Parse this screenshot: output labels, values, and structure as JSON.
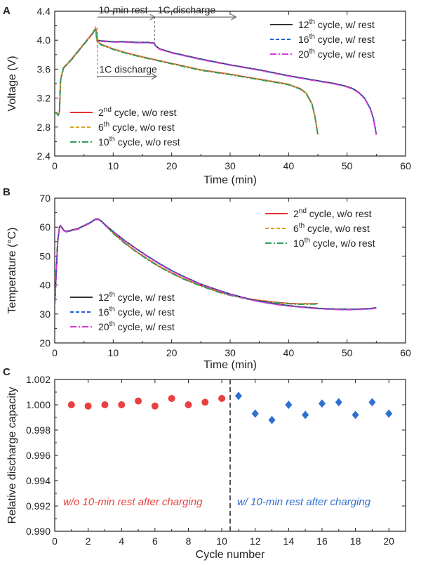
{
  "chart_data": [
    {
      "panel": "A",
      "type": "line",
      "xlabel": "Time (min)",
      "ylabel": "Voltage (V)",
      "xlim": [
        0,
        60
      ],
      "ylim": [
        2.4,
        4.4
      ],
      "xticks": [
        "0",
        "10",
        "20",
        "30",
        "40",
        "50",
        "60"
      ],
      "yticks": [
        "2.4",
        "2.8",
        "3.2",
        "3.6",
        "4.0",
        "4.4"
      ],
      "annotations": [
        "10-min rest",
        "1C discharge",
        "1C discharge"
      ],
      "legend_top_right": [
        {
          "base": "12",
          "sup": "th",
          "rest": " cycle, w/ rest",
          "color": "#333333",
          "dash": ""
        },
        {
          "base": "16",
          "sup": "th",
          "rest": " cycle, w/ rest",
          "color": "#1f5fd6",
          "dash": "5,3"
        },
        {
          "base": "20",
          "sup": "th",
          "rest": " cycle, w/ rest",
          "color": "#d63bd6",
          "dash": "9,3,2,3"
        }
      ],
      "legend_bottom_left": [
        {
          "base": "2",
          "sup": "nd",
          "rest": " cycle, w/o rest",
          "color": "#e8312f",
          "dash": ""
        },
        {
          "base": "6",
          "sup": "th",
          "rest": " cycle, w/o rest",
          "color": "#d8a21c",
          "dash": "5,3"
        },
        {
          "base": "10",
          "sup": "th",
          "rest": " cycle, w/o rest",
          "color": "#2e9c5a",
          "dash": "9,3,2,3"
        }
      ],
      "series": [
        {
          "name": "w/o rest",
          "x": [
            0,
            0.3,
            0.6,
            0.8,
            1.0,
            1.5,
            2.0,
            3.0,
            4.0,
            5.0,
            6.0,
            6.5,
            7.0,
            7.2,
            7.5,
            8,
            10,
            12,
            15,
            20,
            25,
            30,
            35,
            38,
            40,
            41,
            42,
            43,
            44,
            44.5,
            45
          ],
          "y": [
            3.0,
            3.0,
            2.97,
            3.0,
            3.45,
            3.62,
            3.66,
            3.75,
            3.85,
            3.95,
            4.05,
            4.1,
            4.17,
            4.0,
            3.97,
            3.94,
            3.88,
            3.83,
            3.77,
            3.68,
            3.59,
            3.53,
            3.46,
            3.42,
            3.39,
            3.36,
            3.33,
            3.27,
            3.12,
            2.95,
            2.7
          ]
        },
        {
          "name": "w/ rest",
          "x": [
            0,
            0.3,
            0.6,
            0.8,
            1.0,
            1.5,
            2.0,
            3.0,
            4.0,
            5.0,
            6.0,
            6.5,
            7.0,
            7.3,
            8,
            10,
            12,
            14,
            16,
            17,
            17.2,
            17.6,
            18,
            20,
            25,
            30,
            35,
            40,
            45,
            48,
            50,
            51,
            52,
            53,
            54,
            54.5,
            55
          ],
          "y": [
            3.0,
            3.0,
            2.97,
            3.0,
            3.45,
            3.62,
            3.66,
            3.75,
            3.85,
            3.95,
            4.05,
            4.1,
            4.17,
            4.0,
            3.99,
            3.98,
            3.98,
            3.97,
            3.97,
            3.96,
            3.93,
            3.9,
            3.88,
            3.83,
            3.74,
            3.66,
            3.59,
            3.51,
            3.44,
            3.4,
            3.36,
            3.33,
            3.28,
            3.2,
            3.05,
            2.92,
            2.7
          ]
        }
      ]
    },
    {
      "panel": "B",
      "type": "line",
      "xlabel": "Time (min)",
      "ylabel": "Temperature (°C)",
      "xlim": [
        0,
        60
      ],
      "ylim": [
        20,
        70
      ],
      "xticks": [
        "0",
        "10",
        "20",
        "30",
        "40",
        "50",
        "60"
      ],
      "yticks": [
        "20",
        "30",
        "40",
        "50",
        "60",
        "70"
      ],
      "legend_top_right": [
        {
          "base": "2",
          "sup": "nd",
          "rest": " cycle, w/o rest",
          "color": "#e8312f",
          "dash": ""
        },
        {
          "base": "6",
          "sup": "th",
          "rest": " cycle, w/o rest",
          "color": "#d8a21c",
          "dash": "5,3"
        },
        {
          "base": "10",
          "sup": "th",
          "rest": " cycle, w/o rest",
          "color": "#2e9c5a",
          "dash": "9,3,2,3"
        }
      ],
      "legend_bottom_left": [
        {
          "base": "12",
          "sup": "th",
          "rest": " cycle, w/ rest",
          "color": "#333333",
          "dash": ""
        },
        {
          "base": "16",
          "sup": "th",
          "rest": " cycle, w/ rest",
          "color": "#1f5fd6",
          "dash": "5,3"
        },
        {
          "base": "20",
          "sup": "th",
          "rest": " cycle, w/ rest",
          "color": "#d63bd6",
          "dash": "9,3,2,3"
        }
      ],
      "series": [
        {
          "name": "w/o rest",
          "x": [
            0,
            0.5,
            0.8,
            1.0,
            1.5,
            2.0,
            3,
            4,
            5,
            6,
            7,
            7.5,
            8,
            9,
            10,
            12,
            14,
            16,
            18,
            20,
            22,
            25,
            28,
            30,
            33,
            35,
            38,
            40,
            42,
            45
          ],
          "y": [
            33,
            55,
            60,
            60.5,
            59,
            58.5,
            59,
            59.5,
            60.5,
            61.5,
            62.8,
            62.8,
            62,
            60,
            58,
            54.5,
            51.5,
            48.8,
            46.3,
            44.2,
            42.2,
            39.8,
            37.7,
            36.6,
            35.3,
            34.7,
            34.0,
            33.7,
            33.5,
            33.6
          ]
        },
        {
          "name": "w/ rest",
          "x": [
            0,
            0.5,
            0.8,
            1.0,
            1.5,
            2.0,
            3,
            4,
            5,
            6,
            7,
            7.5,
            8,
            9,
            10,
            12,
            14,
            16,
            18,
            20,
            22,
            25,
            28,
            30,
            33,
            35,
            38,
            40,
            42,
            45,
            48,
            50,
            52,
            54,
            55
          ],
          "y": [
            33,
            55,
            60,
            60.5,
            59,
            58.5,
            59,
            59.5,
            60.5,
            61.5,
            62.8,
            62.8,
            62,
            60.2,
            58.5,
            55.3,
            52.5,
            49.8,
            47.3,
            45.0,
            43.0,
            40.3,
            38.2,
            36.9,
            35.3,
            34.4,
            33.4,
            32.9,
            32.5,
            32.0,
            31.7,
            31.6,
            31.7,
            31.9,
            32.2
          ]
        }
      ]
    },
    {
      "panel": "C",
      "type": "scatter",
      "xlabel": "Cycle number",
      "ylabel": "Relative discharge capacity",
      "xlim": [
        0,
        21
      ],
      "ylim": [
        0.99,
        1.002
      ],
      "xticks": [
        "0",
        "2",
        "4",
        "6",
        "8",
        "10",
        "12",
        "14",
        "16",
        "18",
        "20"
      ],
      "yticks": [
        "0.990",
        "0.992",
        "0.994",
        "0.996",
        "0.998",
        "1.000",
        "1.002"
      ],
      "divider_x": 10.5,
      "series": [
        {
          "name": "w/o 10-min rest after charging",
          "color": "#e84040",
          "marker": "circle",
          "x": [
            1,
            2,
            3,
            4,
            5,
            6,
            7,
            8,
            9,
            10
          ],
          "y": [
            1.0,
            0.9999,
            1.0,
            1.0,
            1.0003,
            0.9999,
            1.0005,
            1.0,
            1.0002,
            1.0005
          ]
        },
        {
          "name": "w/ 10-min rest after charging",
          "color": "#2e6fd0",
          "marker": "diamond",
          "x": [
            11,
            12,
            13,
            14,
            15,
            16,
            17,
            18,
            19,
            20
          ],
          "y": [
            1.0007,
            0.9993,
            0.9988,
            1.0,
            0.9992,
            1.0001,
            1.0002,
            0.9992,
            1.0002,
            0.9993
          ]
        }
      ]
    }
  ]
}
